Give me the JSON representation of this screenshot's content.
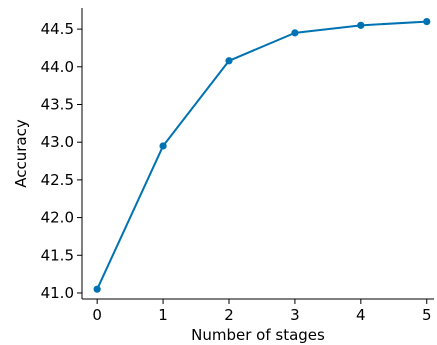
{
  "chart_data": {
    "type": "line",
    "xlabel": "Number of stages",
    "ylabel": "Accuracy",
    "xlim": [
      -0.23,
      5.11
    ],
    "ylim": [
      40.92,
      44.78
    ],
    "x_ticks": [
      0,
      1,
      2,
      3,
      4,
      5
    ],
    "y_ticks": [
      "41.0",
      "41.5",
      "42.0",
      "42.5",
      "43.0",
      "43.5",
      "44.0",
      "44.5"
    ],
    "grid": false,
    "legend": "none",
    "series": [
      {
        "x": [
          0,
          1,
          2,
          3,
          4,
          5
        ],
        "values": [
          41.05,
          42.95,
          44.08,
          44.45,
          44.55,
          44.6
        ],
        "color": "#0072b2",
        "marker": "circle"
      }
    ]
  }
}
